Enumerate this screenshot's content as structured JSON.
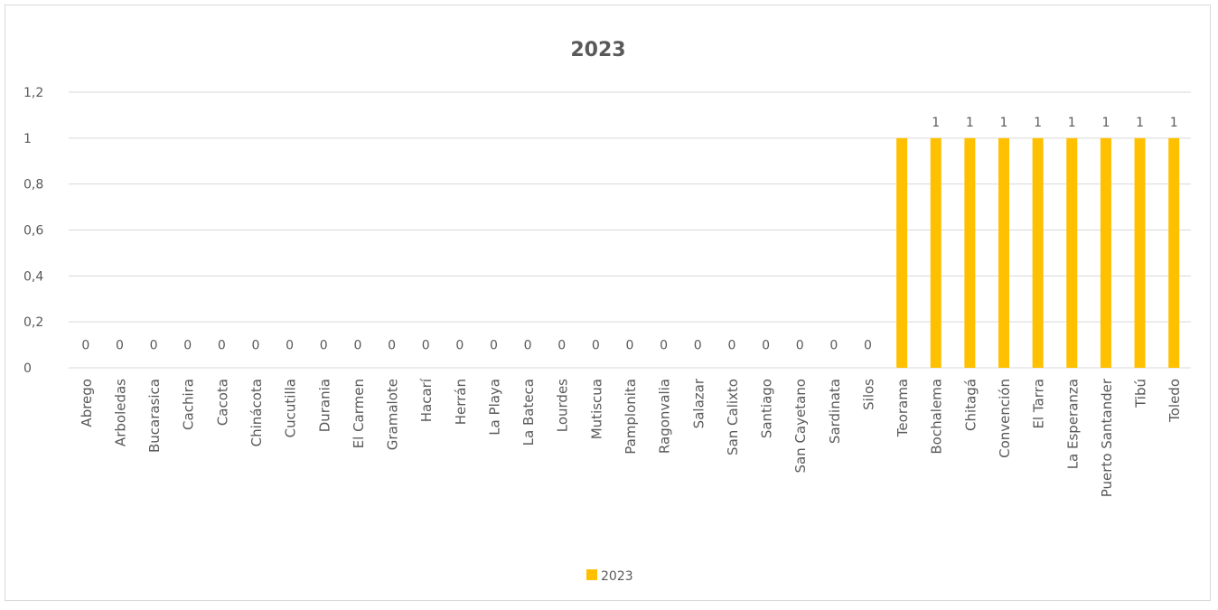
{
  "chart_data": {
    "type": "bar",
    "title": "2023",
    "xlabel": "",
    "ylabel": "",
    "ylim": [
      0,
      1.2
    ],
    "yticks": [
      "0",
      "0,2",
      "0,4",
      "0,6",
      "0,8",
      "1",
      "1,2"
    ],
    "grid": true,
    "legend_position": "bottom",
    "categories": [
      "Abrego",
      "Arboledas",
      "Bucarasica",
      "Cachira",
      "Cacota",
      "Chinácota",
      "Cucutilla",
      "Durania",
      "El Carmen",
      "Gramalote",
      "Hacarí",
      "Herrán",
      "La Playa",
      "La Bateca",
      "Lourdes",
      "Mutiscua",
      "Pamplonita",
      "Ragonvalia",
      "Salazar",
      "San Calixto",
      "Santiago",
      "San Cayetano",
      "Sardinata",
      "Silos",
      "Teorama",
      "Bochalema",
      "Chitagá",
      "Convención",
      "El Tarra",
      "La Esperanza",
      "Puerto Santander",
      "Tibú",
      "Toledo"
    ],
    "series": [
      {
        "name": "2023",
        "color": "#FFC000",
        "values": [
          0,
          0,
          0,
          0,
          0,
          0,
          0,
          0,
          0,
          0,
          0,
          0,
          0,
          0,
          0,
          0,
          0,
          0,
          0,
          0,
          0,
          0,
          0,
          0,
          1,
          1,
          1,
          1,
          1,
          1,
          1,
          1,
          1
        ],
        "data_labels": [
          "0",
          "0",
          "0",
          "0",
          "0",
          "0",
          "0",
          "0",
          "0",
          "0",
          "0",
          "0",
          "0",
          "0",
          "0",
          "0",
          "0",
          "0",
          "0",
          "0",
          "0",
          "0",
          "0",
          "0",
          "",
          "1",
          "1",
          "1",
          "1",
          "1",
          "1",
          "1",
          "1"
        ]
      }
    ]
  }
}
